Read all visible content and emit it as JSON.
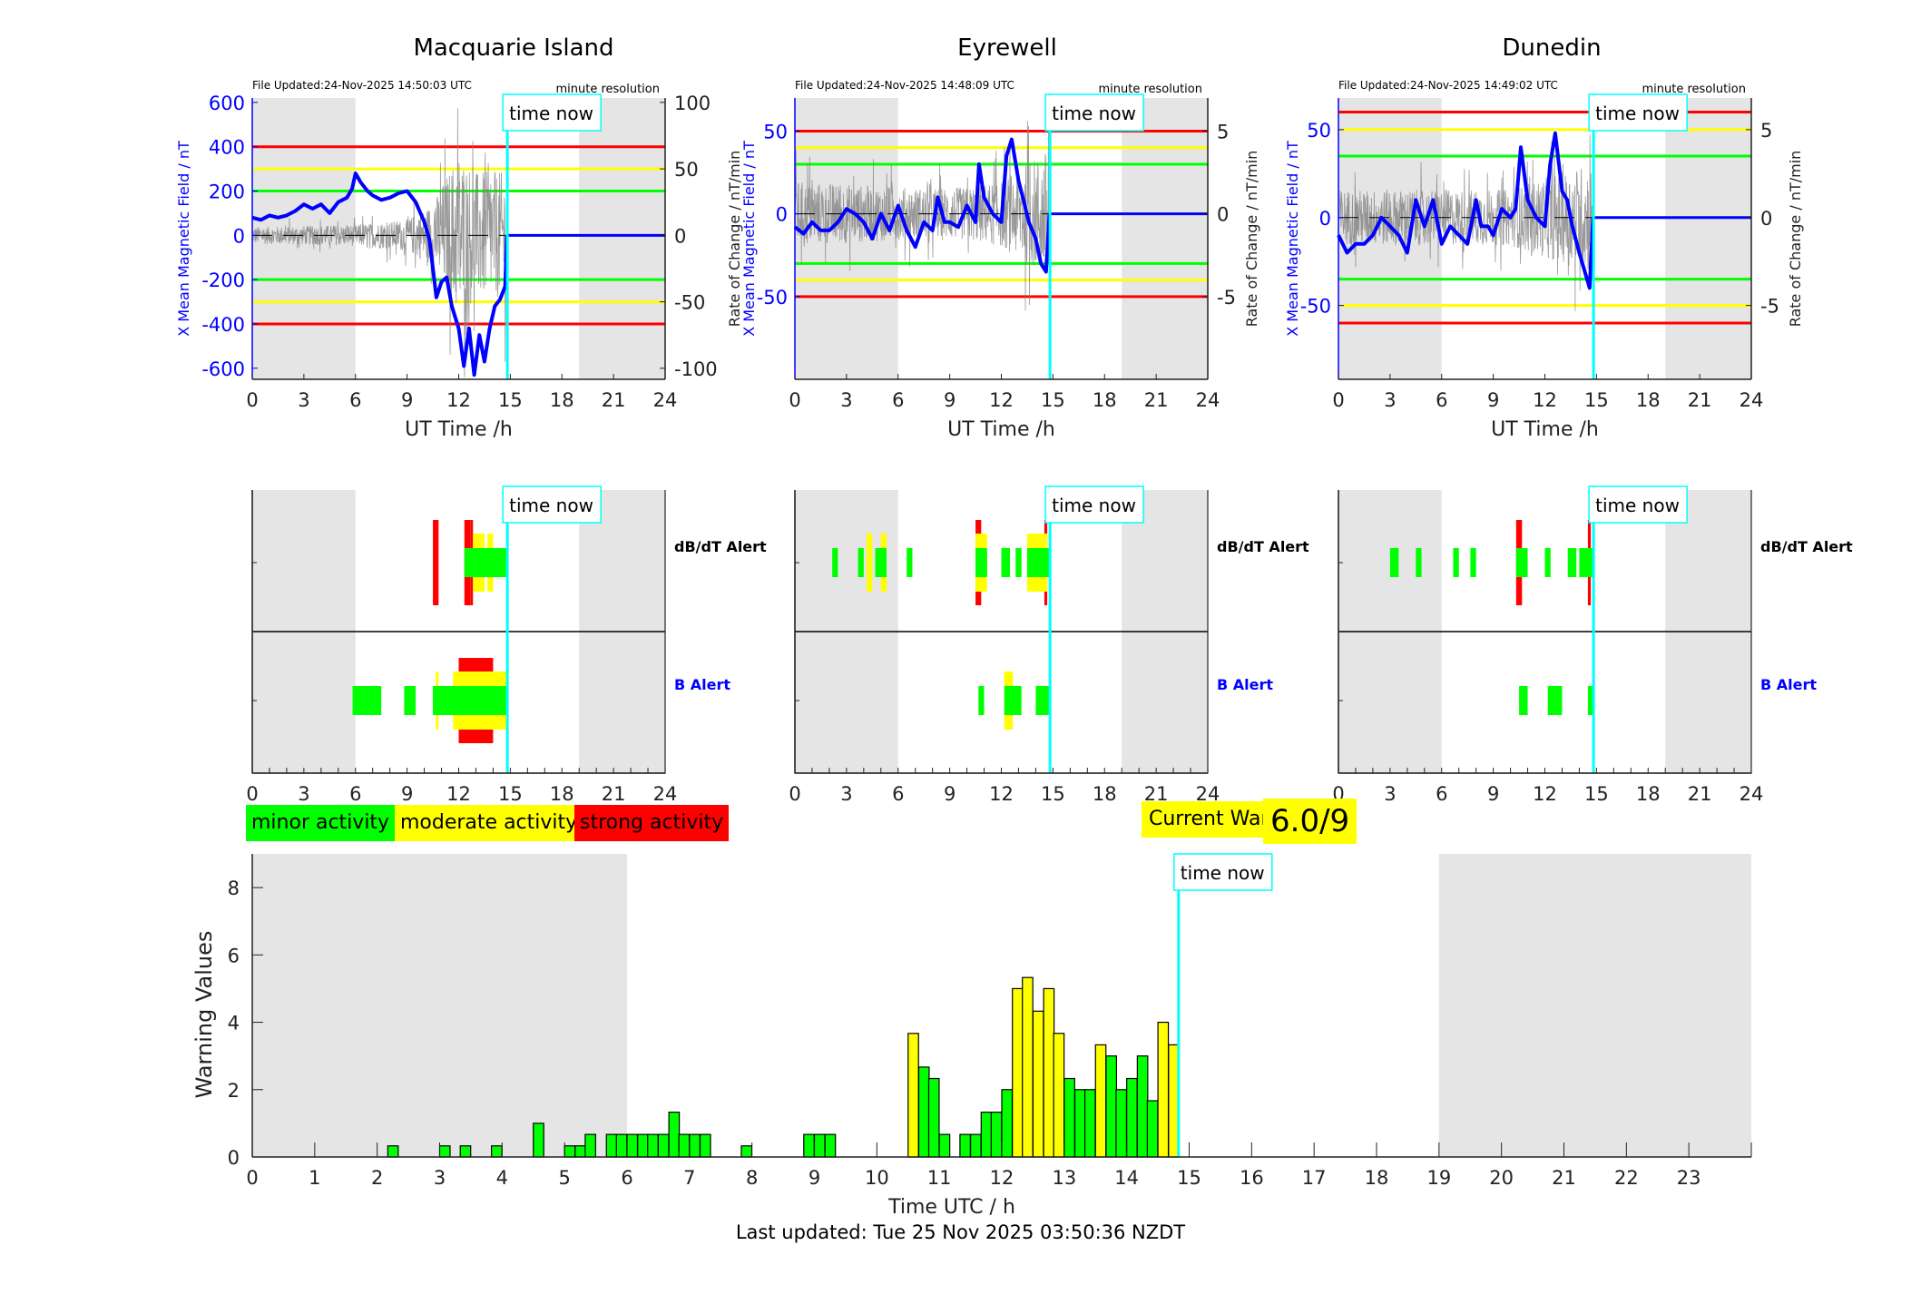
{
  "footer": {
    "last_updated": "Last updated: Tue 25 Nov 2025 03:50:36 NZDT"
  },
  "legend": {
    "minor": {
      "label": "minor activity",
      "color": "#00ff00"
    },
    "moderate": {
      "label": "moderate activity",
      "color": "#ffff00"
    },
    "strong": {
      "label": "strong activity",
      "color": "#ff0000"
    }
  },
  "current_warning": {
    "label": "Current Warning:",
    "value": "6.0/9"
  },
  "colors": {
    "field_line": "#0000ff",
    "rate_line": "#808080",
    "time_now": "#00ffff",
    "night_shade": "#e5e5e5",
    "green": "#00ff00",
    "yellow": "#ffff00",
    "red": "#ff0000"
  },
  "time_now_label": "time now",
  "time_now_hour": 14.83,
  "chart_data": [
    {
      "type": "line",
      "title": "Macquarie Island",
      "file_updated": "File Updated:24-Nov-2025 14:50:03 UTC",
      "resolution": "minute resolution",
      "xlabel": "UT Time /h",
      "ylabel_left": "X Mean Magnetic Field / nT",
      "ylabel_right": "Rate of Change / nT/min",
      "xlim": [
        0,
        24
      ],
      "xticks": [
        0,
        3,
        6,
        9,
        12,
        15,
        18,
        21,
        24
      ],
      "ylim_left": [
        -650,
        620
      ],
      "yticks_left": [
        -600,
        -400,
        -200,
        0,
        200,
        400,
        600
      ],
      "ylim_right": [
        -108.3,
        103.3
      ],
      "yticks_right": [
        -100,
        -50,
        0,
        50,
        100
      ],
      "night_shading_hours": [
        [
          0,
          6
        ],
        [
          19,
          24
        ]
      ],
      "thresholds_left": {
        "green": 200,
        "yellow": 300,
        "red": 400
      },
      "series_field": {
        "x": [
          0,
          0.5,
          1,
          1.5,
          2,
          2.5,
          3,
          3.5,
          4,
          4.5,
          5,
          5.5,
          5.8,
          6,
          6.3,
          6.7,
          7,
          7.5,
          8,
          8.5,
          9,
          9.5,
          10,
          10.3,
          10.5,
          10.7,
          11,
          11.3,
          11.6,
          12,
          12.3,
          12.6,
          12.9,
          13.2,
          13.5,
          13.8,
          14.1,
          14.4,
          14.7,
          14.8
        ],
        "y": [
          80,
          70,
          90,
          80,
          90,
          110,
          140,
          120,
          140,
          100,
          150,
          170,
          210,
          280,
          240,
          200,
          180,
          160,
          170,
          190,
          200,
          150,
          60,
          -20,
          -150,
          -280,
          -210,
          -190,
          -320,
          -420,
          -590,
          -420,
          -630,
          -450,
          -570,
          -420,
          -320,
          -290,
          -230,
          0
        ]
      },
      "series_rate": {
        "amplitude_profile": [
          [
            0,
            8
          ],
          [
            6,
            10
          ],
          [
            9,
            15
          ],
          [
            10.5,
            30
          ],
          [
            12,
            80
          ],
          [
            13,
            60
          ],
          [
            14.8,
            60
          ]
        ]
      }
    },
    {
      "type": "line",
      "title": "Eyrewell",
      "file_updated": "File Updated:24-Nov-2025 14:48:09 UTC",
      "resolution": "minute resolution",
      "xlabel": "UT Time /h",
      "ylabel_left": "X Mean Magnetic Field / nT",
      "ylabel_right": "Rate of Change / nT/min",
      "xlim": [
        0,
        24
      ],
      "xticks": [
        0,
        3,
        6,
        9,
        12,
        15,
        18,
        21,
        24
      ],
      "ylim_left": [
        -100,
        70
      ],
      "yticks_left": [
        -50,
        0,
        50
      ],
      "ylim_right": [
        -10,
        7
      ],
      "yticks_right": [
        -5,
        0,
        5
      ],
      "night_shading_hours": [
        [
          0,
          6
        ],
        [
          19,
          24
        ]
      ],
      "thresholds_left": {
        "green": 30,
        "yellow": 40,
        "red": 50
      },
      "series_field": {
        "x": [
          0,
          0.5,
          1,
          1.5,
          2,
          2.5,
          3,
          3.5,
          4,
          4.5,
          5,
          5.5,
          6,
          6.5,
          7,
          7.5,
          8,
          8.3,
          8.7,
          9,
          9.5,
          10,
          10.5,
          10.7,
          11,
          11.5,
          12,
          12.3,
          12.6,
          13,
          13.3,
          13.6,
          14,
          14.3,
          14.6,
          14.8
        ],
        "y": [
          -8,
          -12,
          -5,
          -10,
          -10,
          -5,
          3,
          0,
          -5,
          -15,
          0,
          -10,
          5,
          -10,
          -20,
          -5,
          -10,
          10,
          -5,
          -5,
          -8,
          5,
          -5,
          30,
          10,
          0,
          -5,
          35,
          45,
          20,
          8,
          -5,
          -15,
          -30,
          -35,
          0
        ]
      },
      "series_rate": {
        "amplitude_profile": [
          [
            0,
            2.5
          ],
          [
            6,
            2
          ],
          [
            10,
            2
          ],
          [
            12,
            2.5
          ],
          [
            14.8,
            5
          ]
        ]
      }
    },
    {
      "type": "line",
      "title": "Dunedin",
      "file_updated": "File Updated:24-Nov-2025 14:49:02 UTC",
      "resolution": "minute resolution",
      "xlabel": "UT Time /h",
      "ylabel_left": "X Mean Magnetic Field / nT",
      "ylabel_right": "Rate of Change / nT/min",
      "xlim": [
        0,
        24
      ],
      "xticks": [
        0,
        3,
        6,
        9,
        12,
        15,
        18,
        21,
        24
      ],
      "ylim_left": [
        -92,
        68
      ],
      "yticks_left": [
        -50,
        0,
        50
      ],
      "ylim_right": [
        -9.2,
        6.8
      ],
      "yticks_right": [
        -5,
        0,
        5
      ],
      "night_shading_hours": [
        [
          0,
          6
        ],
        [
          19,
          24
        ]
      ],
      "thresholds_left": {
        "green": 35,
        "yellow": 50,
        "red": 60
      },
      "series_field": {
        "x": [
          0,
          0.5,
          1,
          1.5,
          2,
          2.5,
          3,
          3.5,
          4,
          4.5,
          5,
          5.5,
          6,
          6.5,
          7,
          7.5,
          8,
          8.3,
          8.7,
          9,
          9.5,
          10,
          10.3,
          10.6,
          11,
          11.5,
          12,
          12.3,
          12.6,
          13,
          13.3,
          13.6,
          14,
          14.3,
          14.6,
          14.8
        ],
        "y": [
          -10,
          -20,
          -15,
          -15,
          -10,
          0,
          -5,
          -10,
          -20,
          10,
          -5,
          10,
          -15,
          -5,
          -10,
          -15,
          10,
          -5,
          -5,
          -10,
          5,
          0,
          5,
          40,
          10,
          0,
          -5,
          30,
          48,
          15,
          10,
          -5,
          -20,
          -30,
          -40,
          0
        ]
      },
      "series_rate": {
        "amplitude_profile": [
          [
            0,
            2
          ],
          [
            6,
            2
          ],
          [
            10,
            2
          ],
          [
            14.8,
            4
          ]
        ]
      }
    },
    {
      "type": "bar",
      "subtype": "alert-timeline",
      "stations": [
        "Macquarie Island",
        "Eyrewell",
        "Dunedin"
      ],
      "rows": [
        {
          "label": "dB/dT Alert",
          "color": "#000000"
        },
        {
          "label": "B Alert",
          "color": "#0000ff"
        }
      ],
      "xlim": [
        0,
        24
      ],
      "xticks": [
        0,
        3,
        6,
        9,
        12,
        15,
        18,
        21,
        24
      ],
      "levels": {
        "1": "minor",
        "2": "moderate",
        "3": "strong"
      },
      "alerts": [
        {
          "dbdt": [
            [
              10.5,
              10.83,
              3
            ],
            [
              12.33,
              12.67,
              3
            ],
            [
              12.67,
              12.83,
              3
            ],
            [
              12.83,
              13.33,
              2
            ],
            [
              13.33,
              13.5,
              2
            ],
            [
              13.67,
              14.0,
              2
            ],
            [
              12.33,
              14.0,
              1
            ],
            [
              14.0,
              14.83,
              1
            ]
          ],
          "b": [
            [
              5.83,
              7.5,
              1
            ],
            [
              8.83,
              9.5,
              1
            ],
            [
              10.5,
              10.83,
              1
            ],
            [
              10.67,
              10.83,
              2
            ],
            [
              11.67,
              14.83,
              2
            ],
            [
              12.0,
              14.0,
              3
            ],
            [
              10.5,
              14.83,
              1
            ]
          ]
        },
        {
          "dbdt": [
            [
              2.17,
              2.5,
              1
            ],
            [
              3.67,
              4.0,
              1
            ],
            [
              4.17,
              4.5,
              2
            ],
            [
              4.67,
              5.33,
              1
            ],
            [
              5.0,
              5.33,
              2
            ],
            [
              6.5,
              6.83,
              1
            ],
            [
              10.5,
              10.83,
              3
            ],
            [
              10.5,
              11.17,
              2
            ],
            [
              10.5,
              11.17,
              1
            ],
            [
              12.0,
              12.5,
              1
            ],
            [
              12.83,
              13.17,
              1
            ],
            [
              13.5,
              14.67,
              2
            ],
            [
              13.5,
              14.83,
              1
            ],
            [
              14.5,
              14.67,
              3
            ]
          ],
          "b": [
            [
              10.67,
              11.0,
              1
            ],
            [
              12.17,
              12.67,
              2
            ],
            [
              12.17,
              13.17,
              1
            ],
            [
              14.0,
              14.83,
              1
            ]
          ]
        },
        {
          "dbdt": [
            [
              3.0,
              3.5,
              1
            ],
            [
              4.5,
              4.83,
              1
            ],
            [
              6.67,
              7.0,
              1
            ],
            [
              7.67,
              8.0,
              1
            ],
            [
              10.33,
              10.67,
              3
            ],
            [
              10.33,
              11.0,
              1
            ],
            [
              12.0,
              12.33,
              1
            ],
            [
              13.33,
              13.83,
              1
            ],
            [
              14.0,
              14.83,
              1
            ],
            [
              14.5,
              14.67,
              3
            ]
          ],
          "b": [
            [
              10.5,
              11.0,
              1
            ],
            [
              12.17,
              13.0,
              1
            ],
            [
              14.5,
              14.83,
              1
            ]
          ]
        }
      ]
    },
    {
      "type": "bar",
      "title": "",
      "xlabel": "Time UTC / h",
      "ylabel": "Warning Values",
      "xlim": [
        0,
        24
      ],
      "xticks": [
        0,
        1,
        2,
        3,
        4,
        5,
        6,
        7,
        8,
        9,
        10,
        11,
        12,
        13,
        14,
        15,
        16,
        17,
        18,
        19,
        20,
        21,
        22,
        23
      ],
      "ylim": [
        0,
        9
      ],
      "yticks": [
        0,
        2,
        4,
        6,
        8
      ],
      "bin_width_hours": 0.1667,
      "night_shading_hours": [
        [
          0,
          6
        ],
        [
          19,
          24
        ]
      ],
      "bars": [
        {
          "x": 2.17,
          "value": 0.33,
          "level": "minor"
        },
        {
          "x": 3.0,
          "value": 0.33,
          "level": "minor"
        },
        {
          "x": 3.33,
          "value": 0.33,
          "level": "minor"
        },
        {
          "x": 3.83,
          "value": 0.33,
          "level": "minor"
        },
        {
          "x": 4.5,
          "value": 1.0,
          "level": "minor"
        },
        {
          "x": 5.0,
          "value": 0.33,
          "level": "minor"
        },
        {
          "x": 5.17,
          "value": 0.33,
          "level": "minor"
        },
        {
          "x": 5.33,
          "value": 0.67,
          "level": "minor"
        },
        {
          "x": 5.67,
          "value": 0.67,
          "level": "minor"
        },
        {
          "x": 5.83,
          "value": 0.67,
          "level": "minor"
        },
        {
          "x": 6.0,
          "value": 0.67,
          "level": "minor"
        },
        {
          "x": 6.17,
          "value": 0.67,
          "level": "minor"
        },
        {
          "x": 6.33,
          "value": 0.67,
          "level": "minor"
        },
        {
          "x": 6.5,
          "value": 0.67,
          "level": "minor"
        },
        {
          "x": 6.67,
          "value": 1.33,
          "level": "minor"
        },
        {
          "x": 6.83,
          "value": 0.67,
          "level": "minor"
        },
        {
          "x": 7.0,
          "value": 0.67,
          "level": "minor"
        },
        {
          "x": 7.17,
          "value": 0.67,
          "level": "minor"
        },
        {
          "x": 7.83,
          "value": 0.33,
          "level": "minor"
        },
        {
          "x": 8.83,
          "value": 0.67,
          "level": "minor"
        },
        {
          "x": 9.0,
          "value": 0.67,
          "level": "minor"
        },
        {
          "x": 9.17,
          "value": 0.67,
          "level": "minor"
        },
        {
          "x": 10.5,
          "value": 3.67,
          "level": "moderate"
        },
        {
          "x": 10.67,
          "value": 2.67,
          "level": "minor"
        },
        {
          "x": 10.83,
          "value": 2.33,
          "level": "minor"
        },
        {
          "x": 11.0,
          "value": 0.67,
          "level": "minor"
        },
        {
          "x": 11.33,
          "value": 0.67,
          "level": "minor"
        },
        {
          "x": 11.5,
          "value": 0.67,
          "level": "minor"
        },
        {
          "x": 11.67,
          "value": 1.33,
          "level": "minor"
        },
        {
          "x": 11.83,
          "value": 1.33,
          "level": "minor"
        },
        {
          "x": 12.0,
          "value": 2.0,
          "level": "minor"
        },
        {
          "x": 12.17,
          "value": 5.0,
          "level": "moderate"
        },
        {
          "x": 12.33,
          "value": 5.33,
          "level": "moderate"
        },
        {
          "x": 12.5,
          "value": 4.33,
          "level": "moderate"
        },
        {
          "x": 12.67,
          "value": 5.0,
          "level": "moderate"
        },
        {
          "x": 12.83,
          "value": 3.67,
          "level": "moderate"
        },
        {
          "x": 13.0,
          "value": 2.33,
          "level": "minor"
        },
        {
          "x": 13.17,
          "value": 2.0,
          "level": "minor"
        },
        {
          "x": 13.33,
          "value": 2.0,
          "level": "minor"
        },
        {
          "x": 13.5,
          "value": 3.33,
          "level": "moderate"
        },
        {
          "x": 13.67,
          "value": 3.0,
          "level": "minor"
        },
        {
          "x": 13.83,
          "value": 2.0,
          "level": "minor"
        },
        {
          "x": 14.0,
          "value": 2.33,
          "level": "minor"
        },
        {
          "x": 14.17,
          "value": 3.0,
          "level": "minor"
        },
        {
          "x": 14.33,
          "value": 1.67,
          "level": "minor"
        },
        {
          "x": 14.5,
          "value": 4.0,
          "level": "moderate"
        },
        {
          "x": 14.67,
          "value": 3.33,
          "level": "moderate"
        }
      ]
    }
  ]
}
